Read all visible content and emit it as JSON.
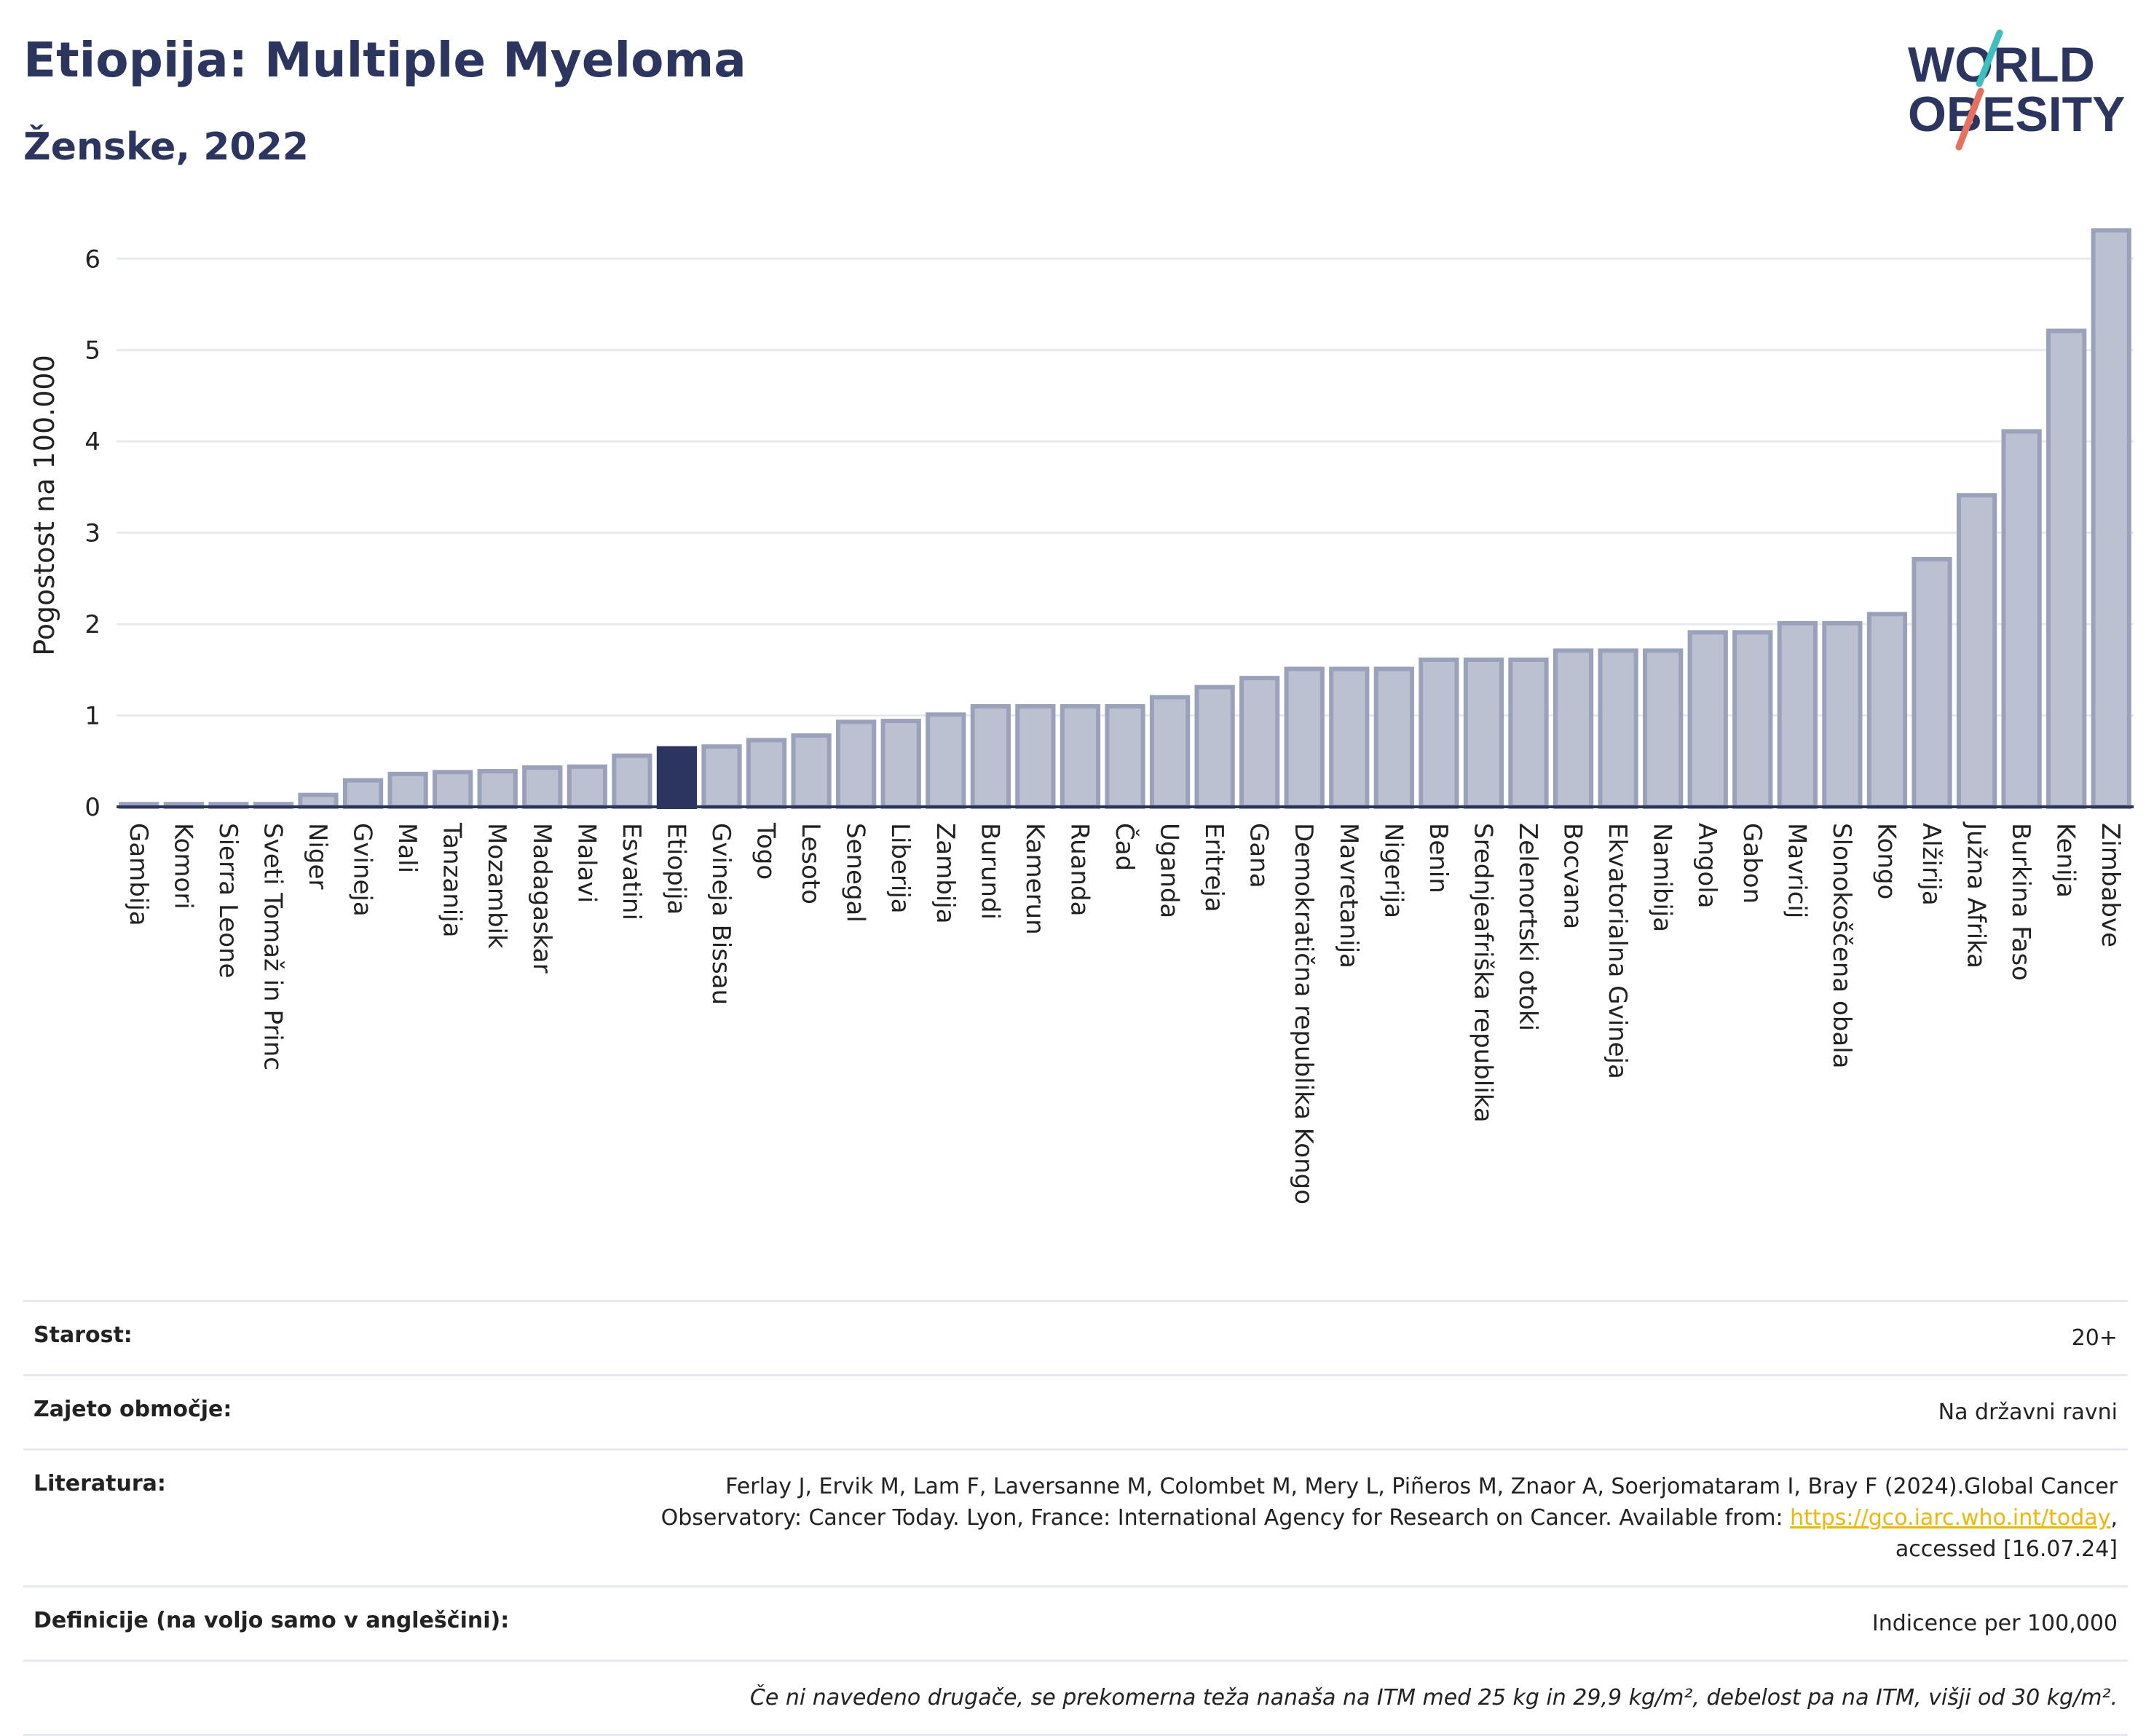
{
  "header": {
    "title": "Etiopija: Multiple Myeloma",
    "subtitle": "Ženske, 2022",
    "logo_line1": "WORLD",
    "logo_line2": "OBESITY"
  },
  "colors": {
    "bar": "#bcc1d2",
    "bar_border": "#9aa1bb",
    "highlight": "#2b3560",
    "title": "#2b3560",
    "grid": "#e6e9f2",
    "logo_teal": "#3cbfbf",
    "logo_red": "#e8705c"
  },
  "chart_data": {
    "type": "bar",
    "title": "Etiopija: Multiple Myeloma",
    "subtitle": "Ženske, 2022",
    "ylabel": "Pogostost na 100.000",
    "ylim": [
      0,
      6.6
    ],
    "yticks": [
      0,
      1,
      2,
      3,
      4,
      5,
      6
    ],
    "grid": true,
    "highlight": "Etiopija",
    "categories": [
      "Gambija",
      "Komori",
      "Sierra Leone",
      "Sveti Tomaž in Princ",
      "Niger",
      "Gvineja",
      "Mali",
      "Tanzanija",
      "Mozambik",
      "Madagaskar",
      "Malavi",
      "Esvatini",
      "Etiopija",
      "Gvineja Bissau",
      "Togo",
      "Lesoto",
      "Senegal",
      "Liberija",
      "Zambija",
      "Burundi",
      "Kamerun",
      "Ruanda",
      "Čad",
      "Uganda",
      "Eritreja",
      "Gana",
      "Demokratična republika Kongo",
      "Mavretanija",
      "Nigerija",
      "Benin",
      "Srednjeafriška republika",
      "Zelenortski otoki",
      "Bocvana",
      "Ekvatorialna Gvineja",
      "Namibija",
      "Angola",
      "Gabon",
      "Mavricij",
      "Slonokoščena obala",
      "Kongo",
      "Alžirija",
      "Južna Afrika",
      "Burkina Faso",
      "Kenija",
      "Zimbabve"
    ],
    "values": [
      0.03,
      0.03,
      0.03,
      0.03,
      0.13,
      0.29,
      0.36,
      0.38,
      0.39,
      0.43,
      0.44,
      0.56,
      0.64,
      0.66,
      0.73,
      0.78,
      0.93,
      0.94,
      1.01,
      1.1,
      1.1,
      1.1,
      1.1,
      1.2,
      1.31,
      1.41,
      1.51,
      1.51,
      1.51,
      1.61,
      1.61,
      1.61,
      1.71,
      1.71,
      1.71,
      1.91,
      1.91,
      2.01,
      2.01,
      2.11,
      2.71,
      3.41,
      4.11,
      5.21,
      6.31
    ]
  },
  "info": {
    "age_label": "Starost:",
    "age_value": "20+",
    "area_label": "Zajeto območje:",
    "area_value": "Na državni ravni",
    "lit_label": "Literatura:",
    "lit_text1": "Ferlay J, Ervik M, Lam F, Laversanne M, Colombet M, Mery L, Piñeros M, Znaor A, Soerjomataram I, Bray F (2024).Global Cancer Observatory: Cancer Today. Lyon, France: International Agency for Research on Cancer. Available from: ",
    "lit_link": "https://gco.iarc.who.int/today",
    "lit_text2": ", accessed [16.07.24]",
    "def_label": "Definicije (na voljo samo v angleščini):",
    "def_value": "Indicence per 100,000",
    "note": "Če ni navedeno drugače, se prekomerna teža nanaša na ITM med 25 kg in 29,9 kg/m², debelost pa na ITM, višji od 30 kg/m²."
  }
}
